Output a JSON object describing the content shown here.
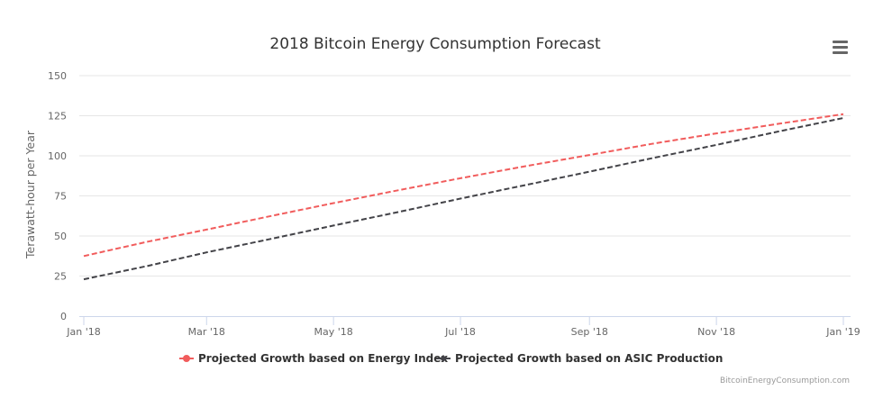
{
  "menu_icon": "hamburger-menu-icon",
  "credit": "BitcoinEnergyConsumption.com",
  "chart_data": {
    "type": "line",
    "title": "2018 Bitcoin Energy Consumption Forecast",
    "xlabel": "",
    "ylabel": "Terawatt-hour per Year",
    "ylim": [
      0,
      150
    ],
    "yticks": [
      0,
      25,
      50,
      75,
      100,
      125,
      150
    ],
    "xlim": [
      "2018-01-01",
      "2019-01-01"
    ],
    "xticks": [
      {
        "date": "2018-01-01",
        "label": "Jan '18"
      },
      {
        "date": "2018-03-01",
        "label": "Mar '18"
      },
      {
        "date": "2018-05-01",
        "label": "May '18"
      },
      {
        "date": "2018-07-01",
        "label": "Jul '18"
      },
      {
        "date": "2018-09-01",
        "label": "Sep '18"
      },
      {
        "date": "2018-11-01",
        "label": "Nov '18"
      },
      {
        "date": "2019-01-01",
        "label": "Jan '19"
      }
    ],
    "grid": true,
    "legend": "bottom",
    "x": [
      "2018-01-01",
      "2018-02-01",
      "2018-03-01",
      "2018-04-01",
      "2018-05-01",
      "2018-06-01",
      "2018-07-01",
      "2018-08-01",
      "2018-09-01",
      "2018-10-01",
      "2018-11-01",
      "2018-12-01",
      "2019-01-01"
    ],
    "series": [
      {
        "name": "Projected Growth based on Energy Index",
        "color": "#f15c5c",
        "dash": true,
        "values": [
          37.5,
          46.5,
          54,
          62.5,
          70.5,
          78.5,
          86,
          93.5,
          100.5,
          107.5,
          114,
          120,
          126
        ]
      },
      {
        "name": "Projected Growth based on ASIC Production",
        "color": "#434348",
        "dash": true,
        "values": [
          23,
          31.4,
          39.8,
          48.2,
          56.5,
          64.9,
          73.3,
          81.7,
          90.1,
          98.5,
          106.8,
          115.2,
          123.6
        ]
      }
    ]
  }
}
